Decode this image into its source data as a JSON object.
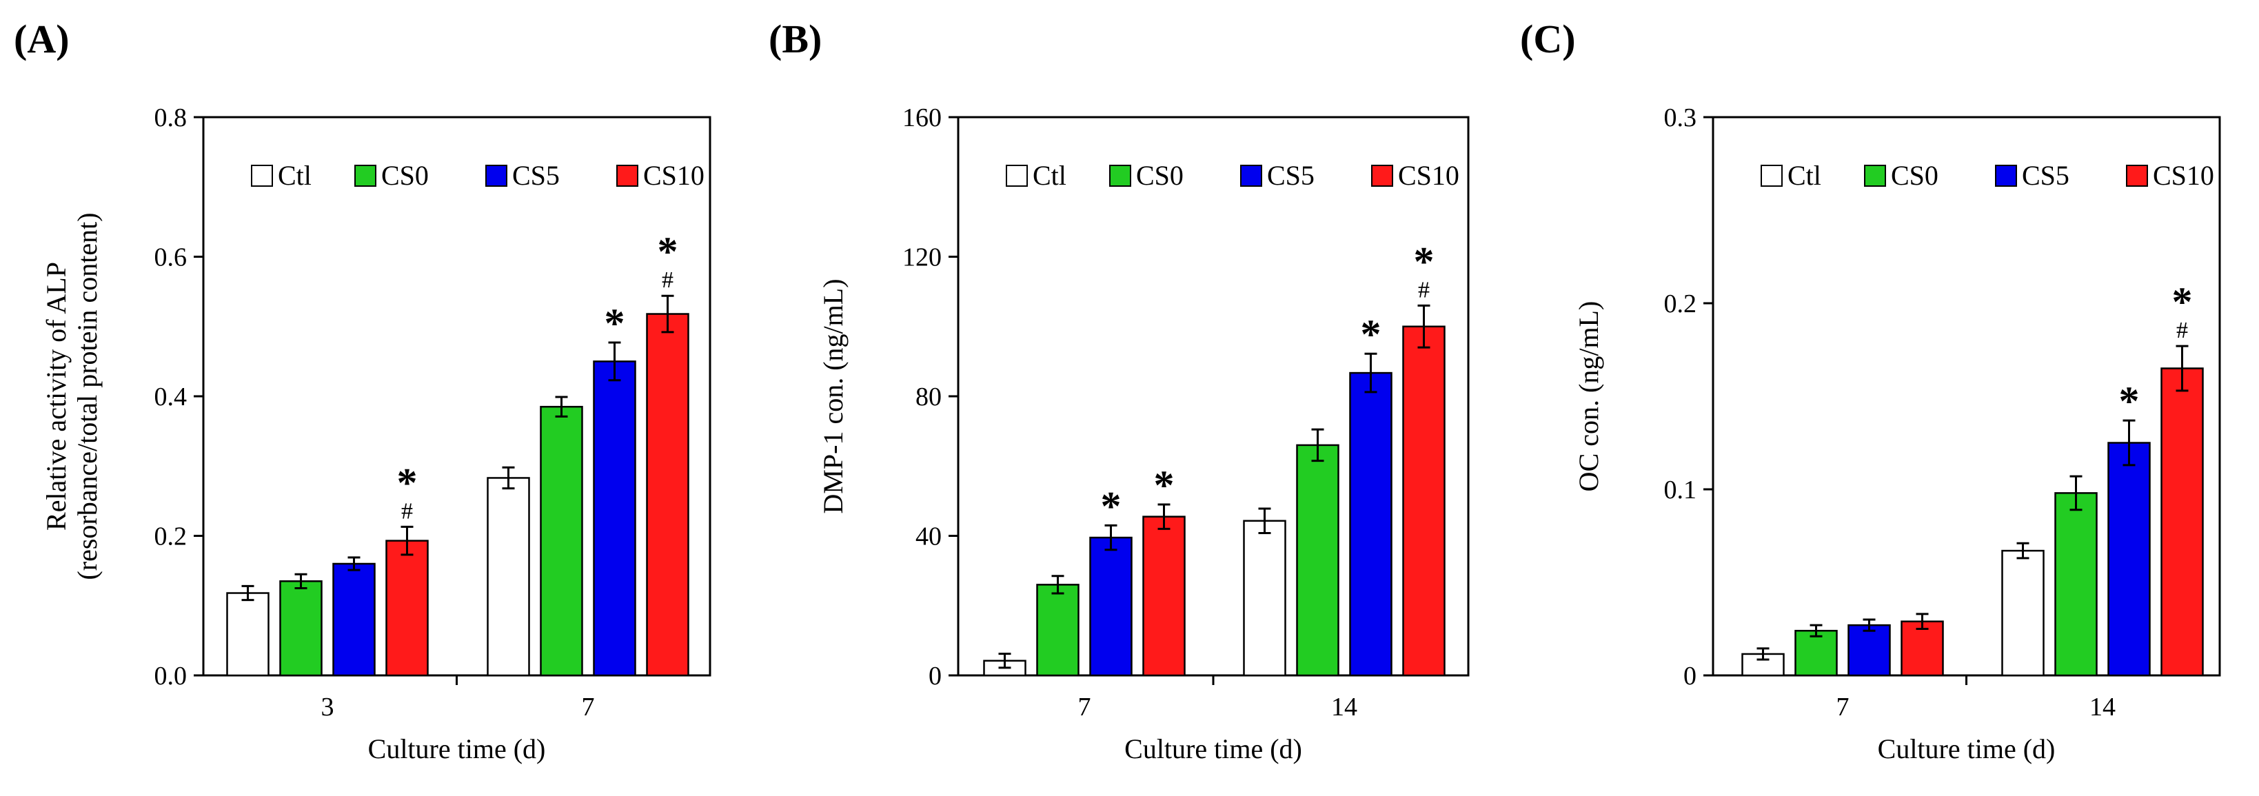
{
  "figure": {
    "panels": [
      "(A)",
      "(B)",
      "(C)"
    ]
  },
  "chart_data": [
    {
      "type": "bar",
      "panel": "(A)",
      "title": "",
      "xlabel": "Culture time (d)",
      "ylabel": "Relative activity of ALP",
      "ylabel2": "(resorbance/total protein content)",
      "categories": [
        "3",
        "7"
      ],
      "ylim": [
        0,
        0.8
      ],
      "yticks": [
        0,
        0.2,
        0.4,
        0.6,
        0.8
      ],
      "ytick_labels": [
        "0.0",
        "0.2",
        "0.4",
        "0.6",
        "0.8"
      ],
      "legend": "top",
      "series": [
        {
          "name": "Ctl",
          "color": "#ffffff",
          "values": [
            0.118,
            0.283
          ],
          "errors": [
            0.01,
            0.015
          ]
        },
        {
          "name": "CS0",
          "color": "#22cc22",
          "values": [
            0.135,
            0.385
          ],
          "errors": [
            0.01,
            0.014
          ]
        },
        {
          "name": "CS5",
          "color": "#0000ee",
          "values": [
            0.16,
            0.45
          ],
          "errors": [
            0.009,
            0.027
          ]
        },
        {
          "name": "CS10",
          "color": "#ff1a1a",
          "values": [
            0.193,
            0.518
          ],
          "errors": [
            0.02,
            0.026
          ]
        }
      ],
      "annotations": [
        {
          "series": "CS5",
          "category": "7",
          "marks": [
            "*"
          ]
        },
        {
          "series": "CS10",
          "category": "3",
          "marks": [
            "*",
            "#"
          ]
        },
        {
          "series": "CS10",
          "category": "7",
          "marks": [
            "*",
            "#"
          ]
        }
      ]
    },
    {
      "type": "bar",
      "panel": "(B)",
      "title": "",
      "xlabel": "Culture time (d)",
      "ylabel": "DMP-1 con. (ng/mL)",
      "categories": [
        "7",
        "14"
      ],
      "ylim": [
        0,
        160
      ],
      "yticks": [
        0,
        40,
        80,
        120,
        160
      ],
      "ytick_labels": [
        "0",
        "40",
        "80",
        "120",
        "160"
      ],
      "legend": "top",
      "series": [
        {
          "name": "Ctl",
          "color": "#ffffff",
          "values": [
            4.2,
            44.3
          ],
          "errors": [
            2.0,
            3.5
          ]
        },
        {
          "name": "CS0",
          "color": "#22cc22",
          "values": [
            26.0,
            66.0
          ],
          "errors": [
            2.5,
            4.5
          ]
        },
        {
          "name": "CS5",
          "color": "#0000ee",
          "values": [
            39.5,
            86.7
          ],
          "errors": [
            3.5,
            5.5
          ]
        },
        {
          "name": "CS10",
          "color": "#ff1a1a",
          "values": [
            45.5,
            100.0
          ],
          "errors": [
            3.5,
            6.0
          ]
        }
      ],
      "annotations": [
        {
          "series": "CS5",
          "category": "7",
          "marks": [
            "*"
          ]
        },
        {
          "series": "CS10",
          "category": "7",
          "marks": [
            "*"
          ]
        },
        {
          "series": "CS5",
          "category": "14",
          "marks": [
            "*"
          ]
        },
        {
          "series": "CS10",
          "category": "14",
          "marks": [
            "*",
            "#"
          ]
        }
      ]
    },
    {
      "type": "bar",
      "panel": "(C)",
      "title": "",
      "xlabel": "Culture time (d)",
      "ylabel": "OC con. (ng/mL)",
      "categories": [
        "7",
        "14"
      ],
      "ylim": [
        0,
        0.3
      ],
      "yticks": [
        0,
        0.1,
        0.2,
        0.3
      ],
      "ytick_labels": [
        "0",
        "0.1",
        "0.2",
        "0.3"
      ],
      "legend": "top",
      "series": [
        {
          "name": "Ctl",
          "color": "#ffffff",
          "values": [
            0.0115,
            0.067
          ],
          "errors": [
            0.003,
            0.004
          ]
        },
        {
          "name": "CS0",
          "color": "#22cc22",
          "values": [
            0.024,
            0.098
          ],
          "errors": [
            0.003,
            0.009
          ]
        },
        {
          "name": "CS5",
          "color": "#0000ee",
          "values": [
            0.027,
            0.125
          ],
          "errors": [
            0.003,
            0.012
          ]
        },
        {
          "name": "CS10",
          "color": "#ff1a1a",
          "values": [
            0.029,
            0.165
          ],
          "errors": [
            0.004,
            0.012
          ]
        }
      ],
      "annotations": [
        {
          "series": "CS5",
          "category": "14",
          "marks": [
            "*"
          ]
        },
        {
          "series": "CS10",
          "category": "14",
          "marks": [
            "*",
            "#"
          ]
        }
      ]
    }
  ]
}
